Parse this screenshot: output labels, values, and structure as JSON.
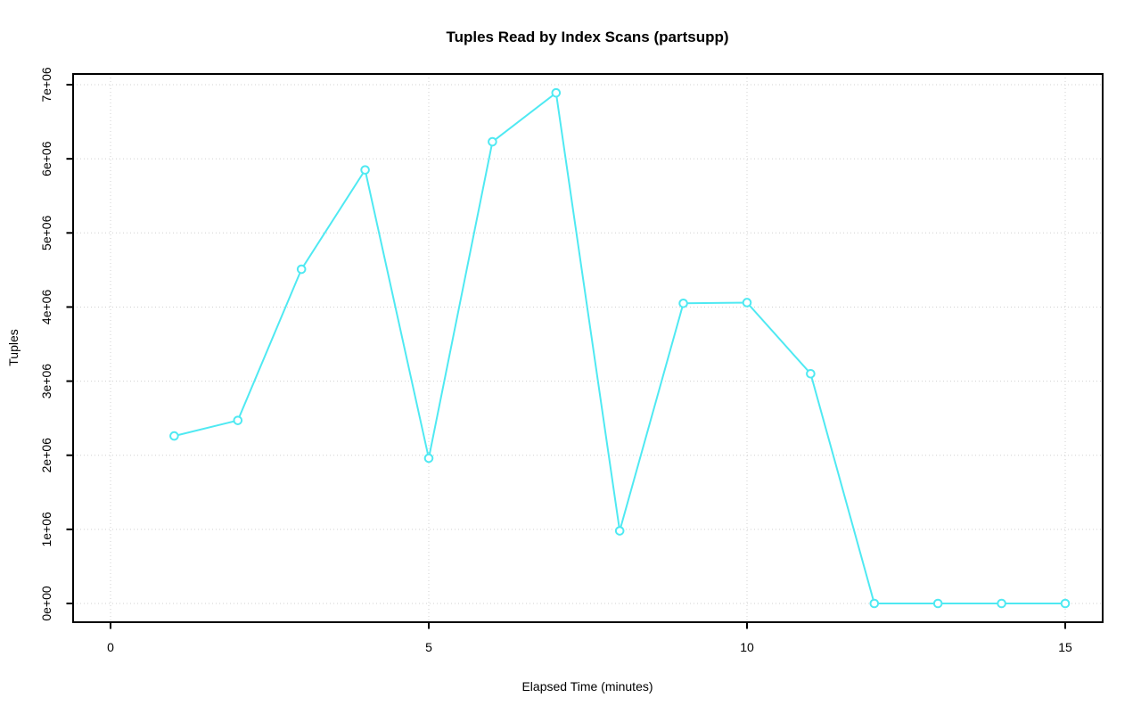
{
  "chart_data": {
    "type": "line",
    "title": "Tuples Read by Index Scans (partsupp)",
    "xlabel": "Elapsed Time (minutes)",
    "ylabel": "Tuples",
    "x": [
      1,
      2,
      3,
      4,
      5,
      6,
      7,
      8,
      9,
      10,
      11,
      12,
      13,
      14,
      15
    ],
    "values": [
      2260000,
      2470000,
      4510000,
      5850000,
      1960000,
      6230000,
      6890000,
      980000,
      4050000,
      4060000,
      3100000,
      0,
      0,
      0,
      0
    ],
    "x_ticks": [
      0,
      5,
      10,
      15
    ],
    "x_tick_labels": [
      "0",
      "5",
      "10",
      "15"
    ],
    "y_ticks": [
      0,
      1000000,
      2000000,
      3000000,
      4000000,
      5000000,
      6000000,
      7000000
    ],
    "y_tick_labels": [
      "0e+00",
      "1e+06",
      "2e+06",
      "3e+06",
      "4e+06",
      "5e+06",
      "6e+06",
      "7e+06"
    ],
    "xlim": [
      -0.6,
      15.6
    ],
    "ylim": [
      -280000,
      7160000
    ],
    "grid": true,
    "legend": "none",
    "line_color": "#4fe9f2",
    "grid_color": "#d0d0d0",
    "frame_color": "#000000",
    "marker": "open-circle"
  }
}
